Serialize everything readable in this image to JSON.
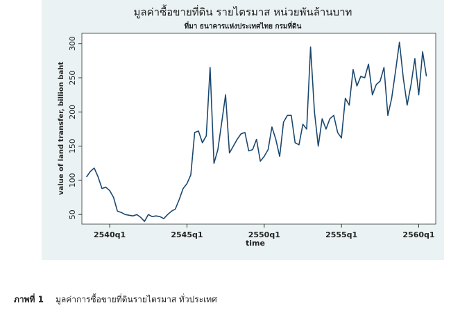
{
  "chart_data": {
    "type": "line",
    "title": "มูลค่าซื้อขายที่ดิน รายไตรมาส  หน่วยพันล้านบาท",
    "subtitle": "ที่มา ธนาคารแห่งประเทศไทย กรมที่ดิน",
    "x_label": "time",
    "y_label": "value of land transfer, billion baht",
    "x": [
      2538.5,
      2538.75,
      2539,
      2539.25,
      2539.5,
      2539.75,
      2540,
      2540.25,
      2540.5,
      2540.75,
      2541,
      2541.25,
      2541.5,
      2541.75,
      2542,
      2542.25,
      2542.5,
      2542.75,
      2543,
      2543.25,
      2543.5,
      2543.75,
      2544,
      2544.25,
      2544.5,
      2544.75,
      2545,
      2545.25,
      2545.5,
      2545.75,
      2546,
      2546.25,
      2546.5,
      2546.75,
      2547,
      2547.25,
      2547.5,
      2547.75,
      2548,
      2548.25,
      2548.5,
      2548.75,
      2549,
      2549.25,
      2549.5,
      2549.75,
      2550,
      2550.25,
      2550.5,
      2550.75,
      2551,
      2551.25,
      2551.5,
      2551.75,
      2552,
      2552.25,
      2552.5,
      2552.75,
      2553,
      2553.25,
      2553.5,
      2553.75,
      2554,
      2554.25,
      2554.5,
      2554.75,
      2555,
      2555.25,
      2555.5,
      2555.75,
      2556,
      2556.25,
      2556.5,
      2556.75,
      2557,
      2557.25,
      2557.5,
      2557.75,
      2558,
      2558.25,
      2558.5,
      2558.75,
      2559,
      2559.25,
      2559.5,
      2559.75,
      2560,
      2560.25,
      2560.5
    ],
    "series": [
      {
        "color": "#1a476f",
        "values": [
          105,
          113,
          118,
          105,
          88,
          90,
          85,
          75,
          55,
          53,
          50,
          49,
          48,
          50,
          46,
          40,
          50,
          47,
          48,
          47,
          44,
          50,
          55,
          58,
          72,
          88,
          95,
          108,
          170,
          172,
          155,
          165,
          265,
          125,
          145,
          185,
          225,
          140,
          150,
          160,
          168,
          170,
          143,
          145,
          160,
          128,
          135,
          145,
          178,
          160,
          135,
          185,
          195,
          195,
          155,
          152,
          182,
          175,
          295,
          200,
          150,
          190,
          175,
          190,
          195,
          170,
          162,
          220,
          210,
          262,
          238,
          252,
          250,
          270,
          225,
          240,
          245,
          265,
          195,
          220,
          260,
          302,
          250,
          210,
          240,
          278,
          225,
          288,
          252
        ]
      }
    ],
    "xlim": [
      2538.2,
      2561.1
    ],
    "xticks": [
      {
        "value": 2540,
        "label": "2540q1"
      },
      {
        "value": 2545,
        "label": "2545q1"
      },
      {
        "value": 2550,
        "label": "2550q1"
      },
      {
        "value": 2555,
        "label": "2555q1"
      },
      {
        "value": 2560,
        "label": "2560q1"
      }
    ],
    "ylim": [
      36,
      315
    ],
    "yticks": [
      50,
      100,
      150,
      200,
      250,
      300
    ],
    "grid": false
  },
  "caption": {
    "label": "ภาพที่ 1",
    "text": "มูลค่าการซื้อขายที่ดินรายไตรมาส ทั่วประเทศ"
  }
}
